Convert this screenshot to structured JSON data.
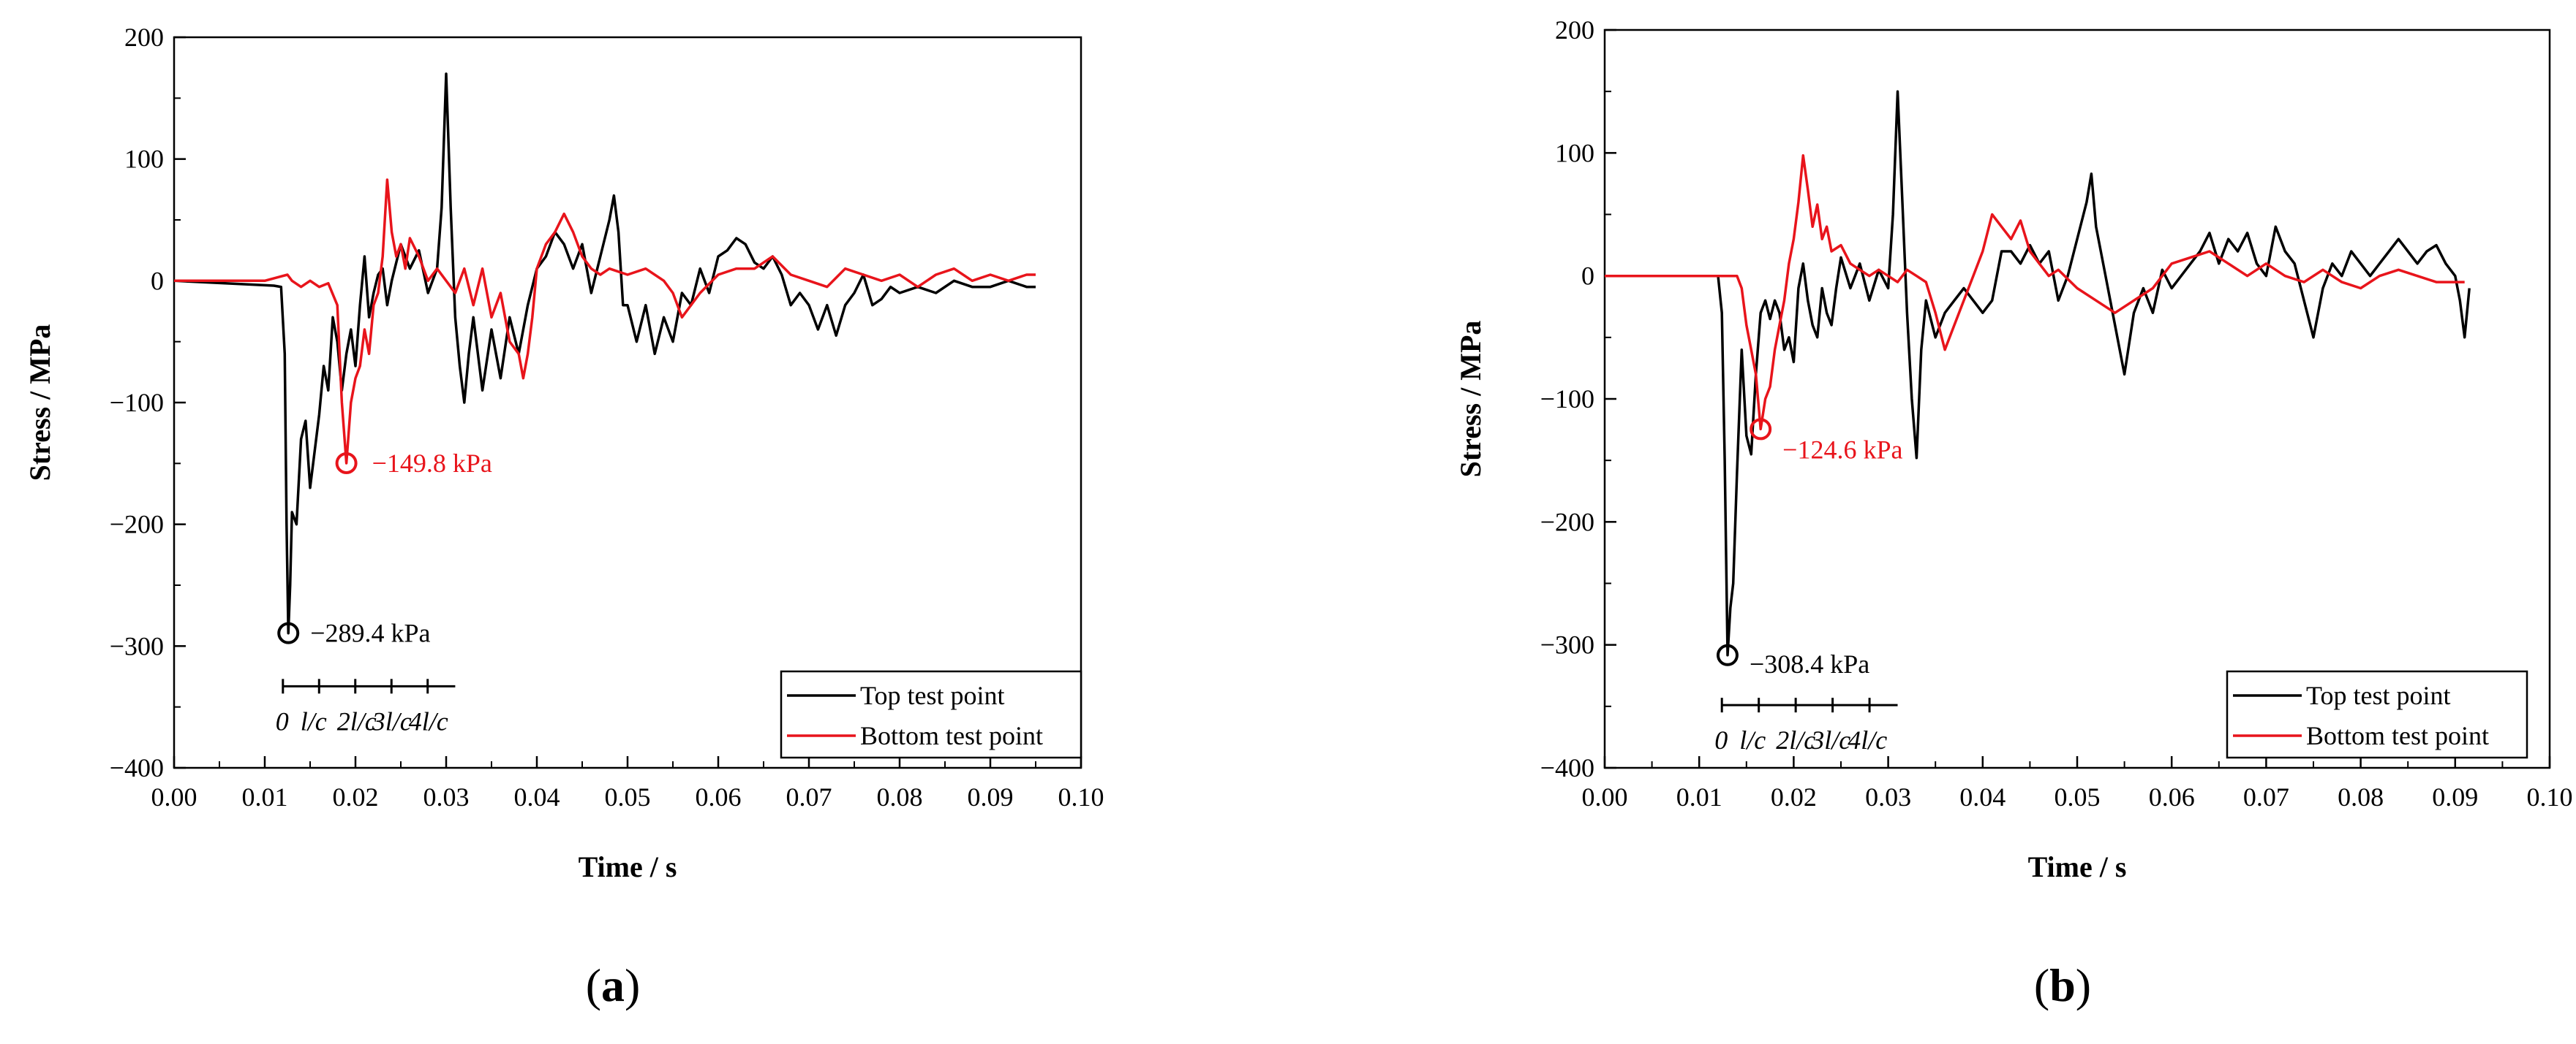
{
  "chart_data": [
    {
      "type": "line",
      "panel_label": "(a)",
      "panel_letter": "a",
      "xlabel": "Time / s",
      "ylabel": "Stress / MPa",
      "xlim": [
        0,
        0.1
      ],
      "ylim": [
        -400,
        200
      ],
      "x_ticks": [
        "0.00",
        "0.01",
        "0.02",
        "0.03",
        "0.04",
        "0.05",
        "0.06",
        "0.07",
        "0.08",
        "0.09",
        "0.10"
      ],
      "y_ticks": [
        "−400",
        "−300",
        "−200",
        "−100",
        "0",
        "100",
        "200"
      ],
      "grid": false,
      "legend_position": "bottom-right",
      "series": [
        {
          "name": "Top test point",
          "color": "#000000",
          "x": [
            0,
            0.011,
            0.0118,
            0.0122,
            0.0124,
            0.0126,
            0.0128,
            0.013,
            0.0135,
            0.014,
            0.0145,
            0.015,
            0.0155,
            0.016,
            0.0165,
            0.017,
            0.0175,
            0.018,
            0.0185,
            0.019,
            0.0195,
            0.02,
            0.0205,
            0.021,
            0.0215,
            0.022,
            0.0225,
            0.023,
            0.0235,
            0.024,
            0.025,
            0.026,
            0.027,
            0.028,
            0.029,
            0.0295,
            0.03,
            0.0305,
            0.031,
            0.0315,
            0.032,
            0.0325,
            0.033,
            0.034,
            0.035,
            0.036,
            0.037,
            0.038,
            0.039,
            0.04,
            0.041,
            0.042,
            0.043,
            0.044,
            0.045,
            0.046,
            0.047,
            0.048,
            0.0485,
            0.049,
            0.0495,
            0.05,
            0.051,
            0.052,
            0.053,
            0.054,
            0.055,
            0.056,
            0.057,
            0.058,
            0.059,
            0.06,
            0.061,
            0.062,
            0.063,
            0.064,
            0.065,
            0.066,
            0.067,
            0.068,
            0.069,
            0.07,
            0.071,
            0.072,
            0.073,
            0.074,
            0.075,
            0.076,
            0.077,
            0.078,
            0.079,
            0.08,
            0.082,
            0.084,
            0.086,
            0.088,
            0.09,
            0.092,
            0.094,
            0.095
          ],
          "y": [
            0,
            -4,
            -5,
            -60,
            -200,
            -289.4,
            -250,
            -190,
            -200,
            -130,
            -115,
            -170,
            -140,
            -110,
            -70,
            -90,
            -30,
            -50,
            -90,
            -60,
            -40,
            -70,
            -20,
            20,
            -30,
            -10,
            5,
            10,
            -20,
            0,
            30,
            10,
            25,
            -10,
            10,
            60,
            170,
            60,
            -30,
            -70,
            -100,
            -60,
            -30,
            -90,
            -40,
            -80,
            -30,
            -60,
            -20,
            10,
            20,
            40,
            30,
            10,
            30,
            -10,
            20,
            50,
            70,
            40,
            -20,
            -20,
            -50,
            -20,
            -60,
            -30,
            -50,
            -10,
            -20,
            10,
            -10,
            20,
            25,
            35,
            30,
            15,
            10,
            20,
            5,
            -20,
            -10,
            -20,
            -40,
            -20,
            -45,
            -20,
            -10,
            5,
            -20,
            -15,
            -5,
            -10,
            -5,
            -10,
            0,
            -5,
            -5,
            0,
            -5,
            -5
          ]
        },
        {
          "name": "Bottom test point",
          "color": "#e8141b",
          "x": [
            0,
            0.01,
            0.0125,
            0.013,
            0.014,
            0.015,
            0.016,
            0.017,
            0.018,
            0.0185,
            0.019,
            0.0195,
            0.02,
            0.0205,
            0.021,
            0.0215,
            0.022,
            0.0225,
            0.023,
            0.0235,
            0.024,
            0.0245,
            0.025,
            0.0255,
            0.026,
            0.027,
            0.028,
            0.029,
            0.03,
            0.031,
            0.032,
            0.033,
            0.034,
            0.035,
            0.036,
            0.037,
            0.038,
            0.0385,
            0.039,
            0.0395,
            0.04,
            0.041,
            0.042,
            0.043,
            0.044,
            0.045,
            0.046,
            0.047,
            0.048,
            0.05,
            0.052,
            0.054,
            0.055,
            0.056,
            0.058,
            0.06,
            0.062,
            0.064,
            0.066,
            0.068,
            0.07,
            0.072,
            0.074,
            0.076,
            0.078,
            0.08,
            0.082,
            0.084,
            0.086,
            0.088,
            0.09,
            0.092,
            0.094,
            0.095
          ],
          "y": [
            0,
            0,
            5,
            0,
            -5,
            0,
            -5,
            -2,
            -20,
            -100,
            -149.8,
            -100,
            -80,
            -70,
            -40,
            -60,
            -20,
            -10,
            20,
            83,
            40,
            20,
            30,
            10,
            35,
            20,
            0,
            10,
            0,
            -10,
            10,
            -20,
            10,
            -30,
            -10,
            -50,
            -60,
            -80,
            -60,
            -30,
            10,
            30,
            40,
            55,
            40,
            20,
            10,
            5,
            10,
            5,
            10,
            0,
            -10,
            -30,
            -10,
            5,
            10,
            10,
            20,
            5,
            0,
            -5,
            10,
            5,
            0,
            5,
            -5,
            5,
            10,
            0,
            5,
            0,
            5,
            5
          ]
        }
      ],
      "annotations": [
        {
          "series": "Top test point",
          "x": 0.0126,
          "y": -289.4,
          "text": "−289.4 kPa",
          "color": "#000000"
        },
        {
          "series": "Bottom test point",
          "x": 0.019,
          "y": -149.8,
          "text": "−149.8 kPa",
          "color": "#e8141b"
        }
      ],
      "scale_bar": {
        "x_start": 0.012,
        "x_end": 0.031,
        "y": -333,
        "labels": [
          "0",
          "l/c",
          "2l/c",
          "3l/c",
          "4l/c"
        ]
      }
    },
    {
      "type": "line",
      "panel_label": "(b)",
      "panel_letter": "b",
      "xlabel": "Time / s",
      "ylabel": "Stress / MPa",
      "xlim": [
        0,
        0.1
      ],
      "ylim": [
        -400,
        200
      ],
      "x_ticks": [
        "0.00",
        "0.01",
        "0.02",
        "0.03",
        "0.04",
        "0.05",
        "0.06",
        "0.07",
        "0.08",
        "0.09",
        "0.10"
      ],
      "y_ticks": [
        "−400",
        "−300",
        "−200",
        "−100",
        "0",
        "100",
        "200"
      ],
      "grid": false,
      "legend_position": "bottom-right",
      "series": [
        {
          "name": "Top test point",
          "color": "#000000",
          "x": [
            0,
            0.012,
            0.0124,
            0.0127,
            0.013,
            0.0133,
            0.0136,
            0.014,
            0.0145,
            0.015,
            0.0155,
            0.016,
            0.0165,
            0.017,
            0.0175,
            0.018,
            0.0185,
            0.019,
            0.0195,
            0.02,
            0.0205,
            0.021,
            0.0215,
            0.022,
            0.0225,
            0.023,
            0.0235,
            0.024,
            0.0245,
            0.025,
            0.026,
            0.027,
            0.028,
            0.029,
            0.03,
            0.0305,
            0.031,
            0.0315,
            0.032,
            0.0325,
            0.033,
            0.0335,
            0.034,
            0.035,
            0.036,
            0.037,
            0.038,
            0.039,
            0.04,
            0.041,
            0.042,
            0.043,
            0.044,
            0.045,
            0.046,
            0.047,
            0.048,
            0.049,
            0.05,
            0.051,
            0.0515,
            0.052,
            0.053,
            0.054,
            0.055,
            0.056,
            0.057,
            0.058,
            0.059,
            0.06,
            0.061,
            0.062,
            0.063,
            0.064,
            0.065,
            0.066,
            0.067,
            0.068,
            0.069,
            0.07,
            0.071,
            0.072,
            0.073,
            0.074,
            0.075,
            0.076,
            0.077,
            0.078,
            0.079,
            0.08,
            0.081,
            0.082,
            0.083,
            0.084,
            0.085,
            0.086,
            0.087,
            0.088,
            0.089,
            0.09,
            0.0905,
            0.091,
            0.0915
          ],
          "y": [
            0,
            0,
            -30,
            -150,
            -308.4,
            -270,
            -250,
            -160,
            -60,
            -130,
            -145,
            -80,
            -30,
            -20,
            -35,
            -20,
            -30,
            -60,
            -50,
            -70,
            -10,
            10,
            -20,
            -40,
            -50,
            -10,
            -30,
            -40,
            -10,
            15,
            -10,
            10,
            -20,
            5,
            -10,
            50,
            150,
            60,
            -30,
            -100,
            -148,
            -60,
            -20,
            -50,
            -30,
            -20,
            -10,
            -20,
            -30,
            -20,
            20,
            20,
            10,
            25,
            10,
            20,
            -20,
            0,
            30,
            60,
            83,
            40,
            0,
            -40,
            -80,
            -30,
            -10,
            -30,
            5,
            -10,
            0,
            10,
            20,
            35,
            10,
            30,
            20,
            35,
            10,
            0,
            40,
            20,
            10,
            -20,
            -50,
            -10,
            10,
            0,
            20,
            10,
            0,
            10,
            20,
            30,
            20,
            10,
            20,
            25,
            10,
            0,
            -20,
            -50,
            -10
          ]
        },
        {
          "name": "Bottom test point",
          "color": "#e8141b",
          "x": [
            0,
            0.011,
            0.014,
            0.0145,
            0.015,
            0.0155,
            0.016,
            0.0165,
            0.017,
            0.0175,
            0.018,
            0.0185,
            0.019,
            0.0195,
            0.02,
            0.0205,
            0.021,
            0.0215,
            0.022,
            0.0225,
            0.023,
            0.0235,
            0.024,
            0.025,
            0.026,
            0.027,
            0.028,
            0.029,
            0.03,
            0.031,
            0.032,
            0.033,
            0.034,
            0.035,
            0.036,
            0.037,
            0.038,
            0.039,
            0.04,
            0.041,
            0.042,
            0.043,
            0.044,
            0.045,
            0.046,
            0.047,
            0.048,
            0.05,
            0.052,
            0.054,
            0.056,
            0.058,
            0.06,
            0.062,
            0.064,
            0.066,
            0.068,
            0.07,
            0.072,
            0.074,
            0.076,
            0.078,
            0.08,
            0.082,
            0.084,
            0.086,
            0.088,
            0.09,
            0.091
          ],
          "y": [
            0,
            0,
            0,
            -10,
            -40,
            -60,
            -80,
            -124.6,
            -100,
            -90,
            -60,
            -40,
            -20,
            10,
            30,
            60,
            98,
            70,
            40,
            58,
            30,
            40,
            20,
            25,
            10,
            5,
            0,
            5,
            0,
            -5,
            5,
            0,
            -5,
            -30,
            -60,
            -40,
            -20,
            0,
            20,
            50,
            40,
            30,
            45,
            20,
            10,
            0,
            5,
            -10,
            -20,
            -30,
            -20,
            -10,
            10,
            15,
            20,
            10,
            0,
            10,
            0,
            -5,
            5,
            -5,
            -10,
            0,
            5,
            0,
            -5,
            -5,
            -5
          ]
        }
      ],
      "annotations": [
        {
          "series": "Top test point",
          "x": 0.013,
          "y": -308.4,
          "text": "−308.4 kPa",
          "color": "#000000"
        },
        {
          "series": "Bottom test point",
          "x": 0.0165,
          "y": -124.6,
          "text": "−124.6 kPa",
          "color": "#e8141b"
        }
      ],
      "scale_bar": {
        "x_start": 0.0124,
        "x_end": 0.031,
        "y": -349,
        "labels": [
          "0",
          "l/c",
          "2l/c",
          "3l/c",
          "4l/c"
        ]
      }
    }
  ]
}
